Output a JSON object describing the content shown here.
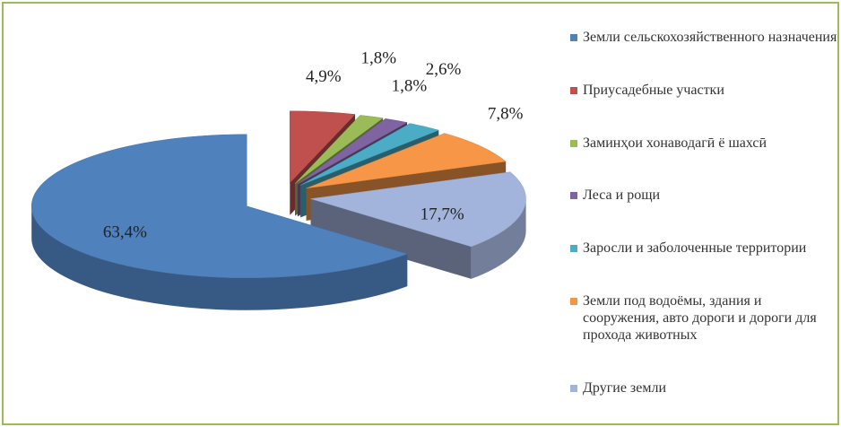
{
  "chart_data": {
    "type": "pie3d",
    "categories": [
      "Земли сельскохозяйственного назначения",
      "Приусадебные участки",
      "Заминҳои хонаводагӣ ё шахсӣ",
      "Леса и рощи",
      "Заросли и заболоченные территории",
      "Земли под водоёмы, здания и сооружения, авто дороги и дороги для прохода животных",
      "Другие земли"
    ],
    "values": [
      63.4,
      4.9,
      1.8,
      1.8,
      2.6,
      7.8,
      17.7
    ],
    "value_labels": [
      "63,4%",
      "4,9%",
      "1,8%",
      "1,8%",
      "2,6%",
      "7,8%",
      "17,7%"
    ],
    "colors": [
      "#4f81bd",
      "#c0504d",
      "#9bbb59",
      "#8064a2",
      "#4bacc6",
      "#f79646",
      "#a3b4dc"
    ],
    "legend": "right"
  }
}
